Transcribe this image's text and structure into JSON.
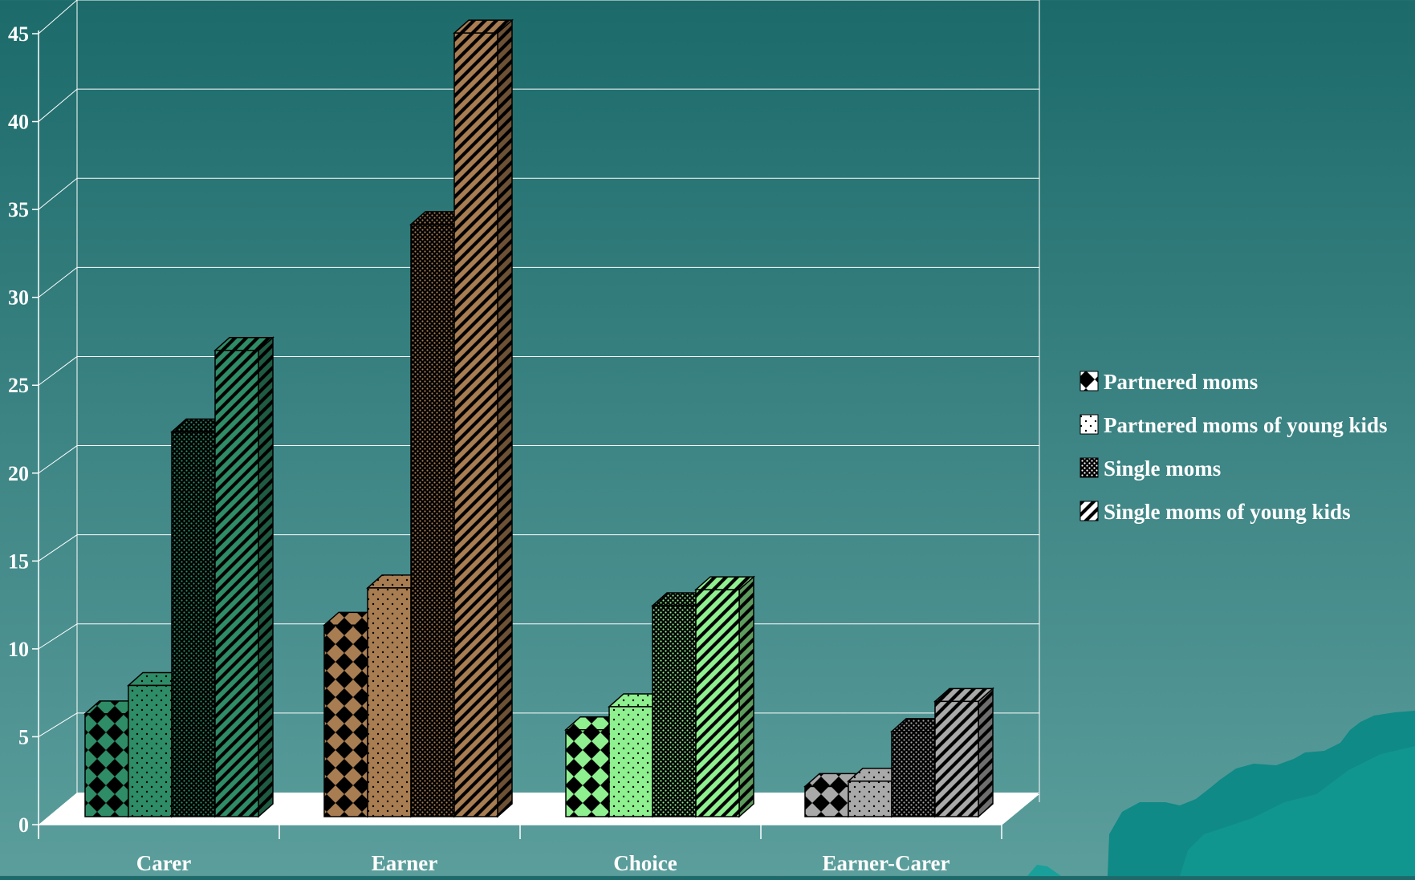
{
  "chart_data": {
    "type": "bar",
    "title": "",
    "xlabel": "",
    "ylabel": "",
    "ylim": [
      0,
      45
    ],
    "yticks": [
      0,
      5,
      10,
      15,
      20,
      25,
      30,
      35,
      40,
      45
    ],
    "grid": true,
    "legend_position": "right",
    "categories": [
      "Carer",
      "Earner",
      "Choice",
      "Earner-Carer"
    ],
    "series": [
      {
        "name": "Partnered moms",
        "values": [
          5.8,
          10.8,
          4.9,
          1.7
        ]
      },
      {
        "name": "Partnered moms of young kids",
        "values": [
          7.4,
          12.9,
          6.2,
          2.0
        ]
      },
      {
        "name": "Single moms",
        "values": [
          21.7,
          33.4,
          11.9,
          4.8
        ]
      },
      {
        "name": "Single moms of young kids",
        "values": [
          26.3,
          44.2,
          12.8,
          6.5
        ]
      }
    ],
    "category_colors": [
      "#2e8c66",
      "#a87d52",
      "#8ff08f",
      "#a9a9a9"
    ],
    "series_patterns": [
      "diamond-check",
      "dots",
      "dense-dots",
      "diagonal-stripes"
    ]
  }
}
